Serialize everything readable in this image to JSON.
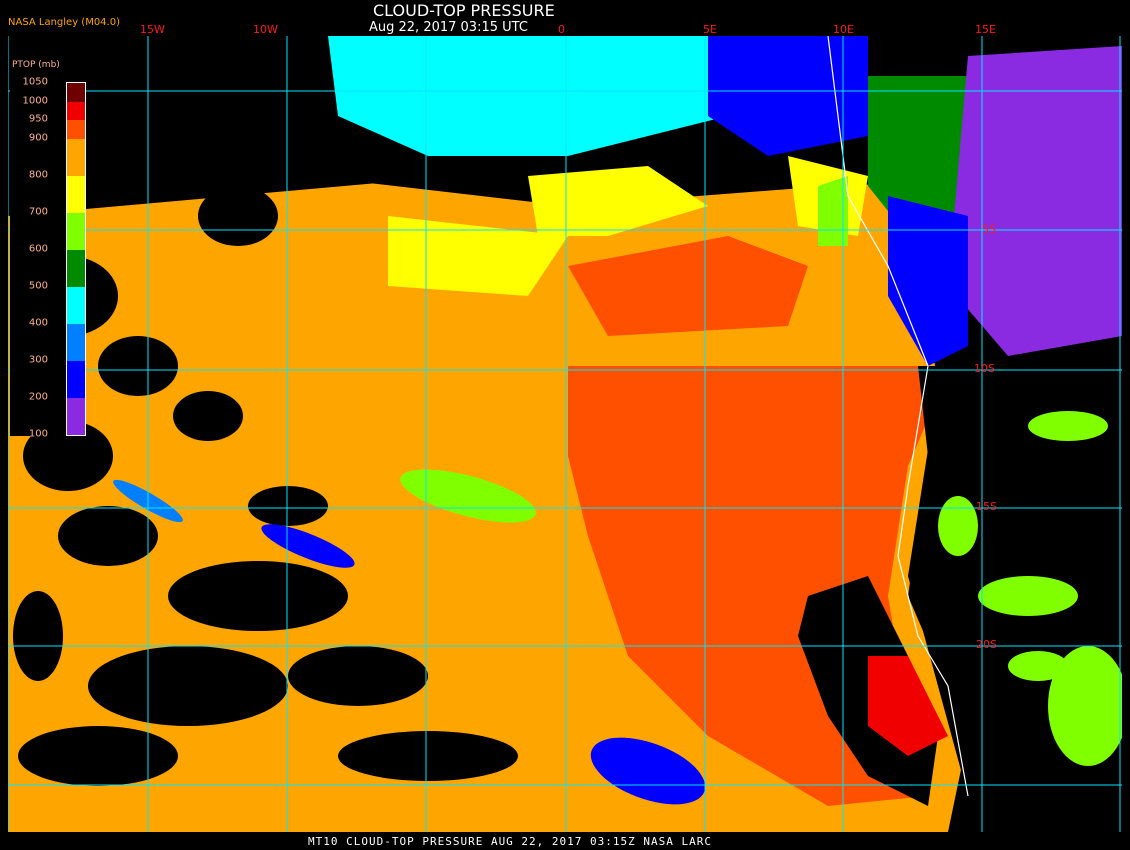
{
  "header": {
    "title": "CLOUD-TOP PRESSURE",
    "subtitle": "Aug 22, 2017 03:15 UTC",
    "organization": "NASA Langley (M04.0)"
  },
  "longitude_labels": [
    "15W",
    "10W",
    "0",
    "5E",
    "10E",
    "15E"
  ],
  "latitude_labels": [
    "5S",
    "10S",
    "15S",
    "20S"
  ],
  "legend": {
    "title": "PTOP (mb)",
    "levels": [
      "1050",
      "1000",
      "950",
      "900",
      "800",
      "700",
      "600",
      "500",
      "400",
      "300",
      "200",
      "100"
    ],
    "colors": [
      "#6e0000",
      "#f00000",
      "#ff5000",
      "#ffa500",
      "#ffff00",
      "#80ff00",
      "#008a00",
      "#00ffff",
      "#0080ff",
      "#0000ff",
      "#8a2be2"
    ]
  },
  "map_colors": {
    "background": "#000000",
    "grid": "#00e5ff",
    "coast": "#ffffff"
  },
  "footer": {
    "text": "MT10  CLOUD-TOP PRESSURE   AUG 22, 2017 03:15Z   NASA LARC"
  }
}
